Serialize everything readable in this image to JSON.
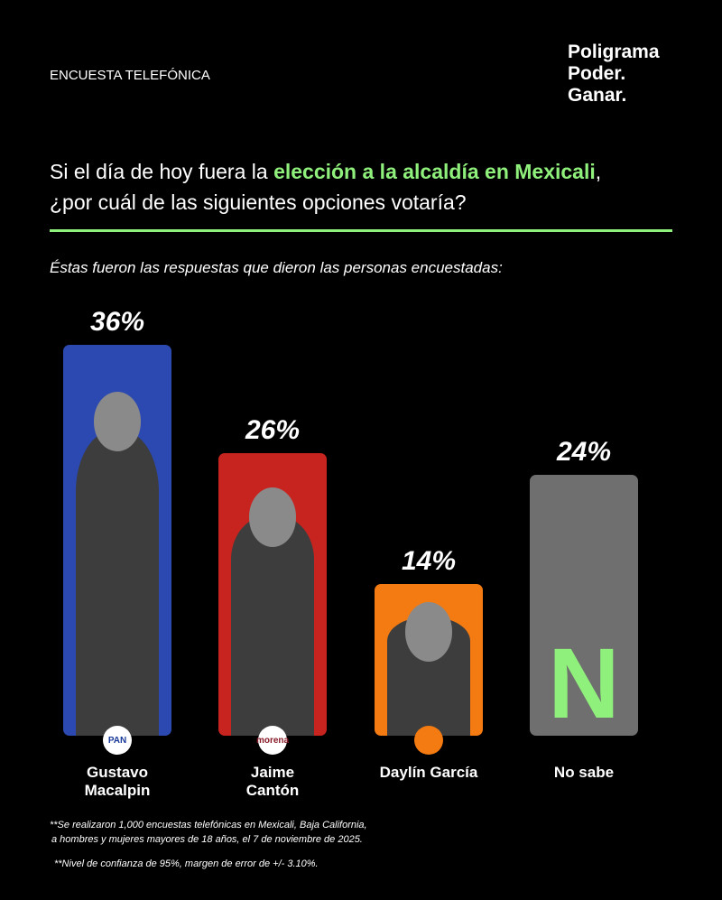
{
  "header": {
    "label": "ENCUESTA TELEFÓNICA",
    "brand": [
      "Poligrama",
      "Poder.",
      "Ganar."
    ]
  },
  "chart_data": {
    "type": "bar",
    "title_parts": [
      "Si el día de hoy fuera la ",
      "elección a la alcaldía en Mexicali",
      ","
    ],
    "title_line2": "¿por cuál de las siguientes opciones votaría?",
    "subtitle": "Éstas fueron las respuestas que dieron las personas encuestadas:",
    "categories": [
      "Gustavo Macalpin",
      "Jaime Cantón",
      "Daylín García",
      "No sabe"
    ],
    "values": [
      36,
      26,
      14,
      24
    ],
    "value_labels": [
      "36%",
      "26%",
      "14%",
      "24%"
    ],
    "colors": [
      "#2b49b0",
      "#c8241f",
      "#f47a12",
      "#6f6f6f"
    ],
    "badges": [
      "PAN",
      "morena",
      null,
      null
    ],
    "placeholder_letter": "N",
    "accent_color": "#8ff07c"
  },
  "footnotes": [
    "**Se realizaron 1,000 encuestas telefónicas en Mexicali, Baja California,",
    "a hombres y mujeres mayores de 18 años, el 7 de noviembre de 2025.",
    "**Nivel de confianza de 95%, margen de error de +/- 3.10%."
  ]
}
